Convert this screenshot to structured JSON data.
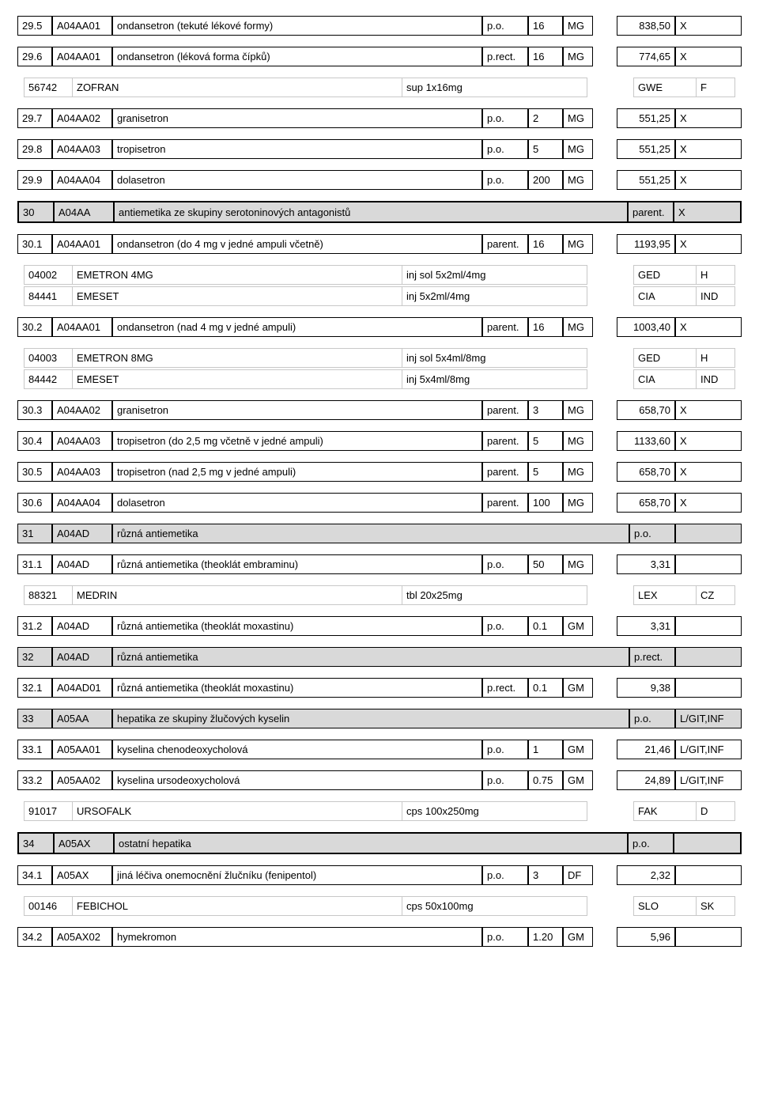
{
  "colors": {
    "bg": "#ffffff",
    "border": "#000000",
    "header_bg": "#d9d9d9",
    "sub_border": "#c8c8c8"
  },
  "fonts": {
    "family": "Arial",
    "size_main": 13,
    "size_sub": 13
  },
  "rows": [
    {
      "type": "main",
      "num": "29.5",
      "code": "A04AA01",
      "name": "ondansetron (tekuté lékové formy)",
      "route": "p.o.",
      "qty": "16",
      "unit": "MG",
      "price": "838,50",
      "flag": "X"
    },
    {
      "type": "main",
      "num": "29.6",
      "code": "A04AA01",
      "name": "ondansetron (léková forma čípků)",
      "route": "p.rect.",
      "qty": "16",
      "unit": "MG",
      "price": "774,65",
      "flag": "X"
    },
    {
      "type": "subgroup",
      "items": [
        {
          "code": "56742",
          "name": "ZOFRAN",
          "form": "sup 1x16mg",
          "m1": "GWE",
          "m2": "F"
        }
      ]
    },
    {
      "type": "main",
      "num": "29.7",
      "code": "A04AA02",
      "name": "granisetron",
      "route": "p.o.",
      "qty": "2",
      "unit": "MG",
      "price": "551,25",
      "flag": "X"
    },
    {
      "type": "main",
      "num": "29.8",
      "code": "A04AA03",
      "name": "tropisetron",
      "route": "p.o.",
      "qty": "5",
      "unit": "MG",
      "price": "551,25",
      "flag": "X"
    },
    {
      "type": "main",
      "num": "29.9",
      "code": "A04AA04",
      "name": "dolasetron",
      "route": "p.o.",
      "qty": "200",
      "unit": "MG",
      "price": "551,25",
      "flag": "X"
    },
    {
      "type": "header_heavy",
      "num": "30",
      "code": "A04AA",
      "name": "antiemetika ze skupiny serotoninových antagonistů",
      "route": "parent.",
      "flag": "X"
    },
    {
      "type": "main",
      "num": "30.1",
      "code": "A04AA01",
      "name": "ondansetron (do 4 mg v jedné ampuli včetně)",
      "route": "parent.",
      "qty": "16",
      "unit": "MG",
      "price": "1193,95",
      "flag": "X"
    },
    {
      "type": "subgroup",
      "items": [
        {
          "code": "04002",
          "name": "EMETRON 4MG",
          "form": "inj sol 5x2ml/4mg",
          "m1": "GED",
          "m2": "H"
        },
        {
          "code": "84441",
          "name": "EMESET",
          "form": "inj 5x2ml/4mg",
          "m1": "CIA",
          "m2": "IND"
        }
      ]
    },
    {
      "type": "main",
      "num": "30.2",
      "code": "A04AA01",
      "name": "ondansetron (nad 4 mg v jedné ampuli)",
      "route": "parent.",
      "qty": "16",
      "unit": "MG",
      "price": "1003,40",
      "flag": "X"
    },
    {
      "type": "subgroup",
      "items": [
        {
          "code": "04003",
          "name": "EMETRON 8MG",
          "form": "inj sol 5x4ml/8mg",
          "m1": "GED",
          "m2": "H"
        },
        {
          "code": "84442",
          "name": "EMESET",
          "form": "inj 5x4ml/8mg",
          "m1": "CIA",
          "m2": "IND"
        }
      ]
    },
    {
      "type": "main",
      "num": "30.3",
      "code": "A04AA02",
      "name": "granisetron",
      "route": "parent.",
      "qty": "3",
      "unit": "MG",
      "price": "658,70",
      "flag": "X"
    },
    {
      "type": "main",
      "num": "30.4",
      "code": "A04AA03",
      "name": "tropisetron (do 2,5 mg včetně v jedné ampuli)",
      "route": "parent.",
      "qty": "5",
      "unit": "MG",
      "price": "1133,60",
      "flag": "X"
    },
    {
      "type": "main",
      "num": "30.5",
      "code": "A04AA03",
      "name": "tropisetron (nad 2,5 mg v jedné ampuli)",
      "route": "parent.",
      "qty": "5",
      "unit": "MG",
      "price": "658,70",
      "flag": "X"
    },
    {
      "type": "main",
      "num": "30.6",
      "code": "A04AA04",
      "name": "dolasetron",
      "route": "parent.",
      "qty": "100",
      "unit": "MG",
      "price": "658,70",
      "flag": "X"
    },
    {
      "type": "header",
      "num": "31",
      "code": "A04AD",
      "name": "různá antiemetika",
      "route": "p.o.",
      "flag": ""
    },
    {
      "type": "main",
      "num": "31.1",
      "code": "A04AD",
      "name": "různá antiemetika (theoklát embraminu)",
      "route": "p.o.",
      "qty": "50",
      "unit": "MG",
      "price": "3,31",
      "flag": ""
    },
    {
      "type": "subgroup",
      "items": [
        {
          "code": "88321",
          "name": "MEDRIN",
          "form": "tbl 20x25mg",
          "m1": "LEX",
          "m2": "CZ"
        }
      ]
    },
    {
      "type": "main",
      "num": "31.2",
      "code": "A04AD",
      "name": "různá antiemetika (theoklát moxastinu)",
      "route": "p.o.",
      "qty": "0.1",
      "unit": "GM",
      "price": "3,31",
      "flag": ""
    },
    {
      "type": "header",
      "num": "32",
      "code": "A04AD",
      "name": "různá antiemetika",
      "route": "p.rect.",
      "flag": ""
    },
    {
      "type": "main",
      "num": "32.1",
      "code": "A04AD01",
      "name": "různá antiemetika (theoklát moxastinu)",
      "route": "p.rect.",
      "qty": "0.1",
      "unit": "GM",
      "price": "9,38",
      "flag": ""
    },
    {
      "type": "header",
      "num": "33",
      "code": "A05AA",
      "name": "hepatika ze skupiny žlučových kyselin",
      "route": "p.o.",
      "flag": "L/GIT,INF"
    },
    {
      "type": "main",
      "num": "33.1",
      "code": "A05AA01",
      "name": "kyselina chenodeoxycholová",
      "route": "p.o.",
      "qty": "1",
      "unit": "GM",
      "price": "21,46",
      "flag": "L/GIT,INF"
    },
    {
      "type": "main",
      "num": "33.2",
      "code": "A05AA02",
      "name": "kyselina ursodeoxycholová",
      "route": "p.o.",
      "qty": "0.75",
      "unit": "GM",
      "price": "24,89",
      "flag": "L/GIT,INF"
    },
    {
      "type": "subgroup",
      "items": [
        {
          "code": "91017",
          "name": "URSOFALK",
          "form": "cps 100x250mg",
          "m1": "FAK",
          "m2": "D"
        }
      ]
    },
    {
      "type": "header_heavy",
      "num": "34",
      "code": "A05AX",
      "name": "ostatní hepatika",
      "route": "p.o.",
      "flag": ""
    },
    {
      "type": "main",
      "num": "34.1",
      "code": "A05AX",
      "name": "jiná léčiva onemocnění žlučníku (fenipentol)",
      "route": "p.o.",
      "qty": "3",
      "unit": "DF",
      "price": "2,32",
      "flag": ""
    },
    {
      "type": "subgroup",
      "items": [
        {
          "code": "00146",
          "name": "FEBICHOL",
          "form": "cps 50x100mg",
          "m1": "SLO",
          "m2": "SK"
        }
      ]
    },
    {
      "type": "main",
      "num": "34.2",
      "code": "A05AX02",
      "name": "hymekromon",
      "route": "p.o.",
      "qty": "1.20",
      "unit": "GM",
      "price": "5,96",
      "flag": ""
    }
  ]
}
